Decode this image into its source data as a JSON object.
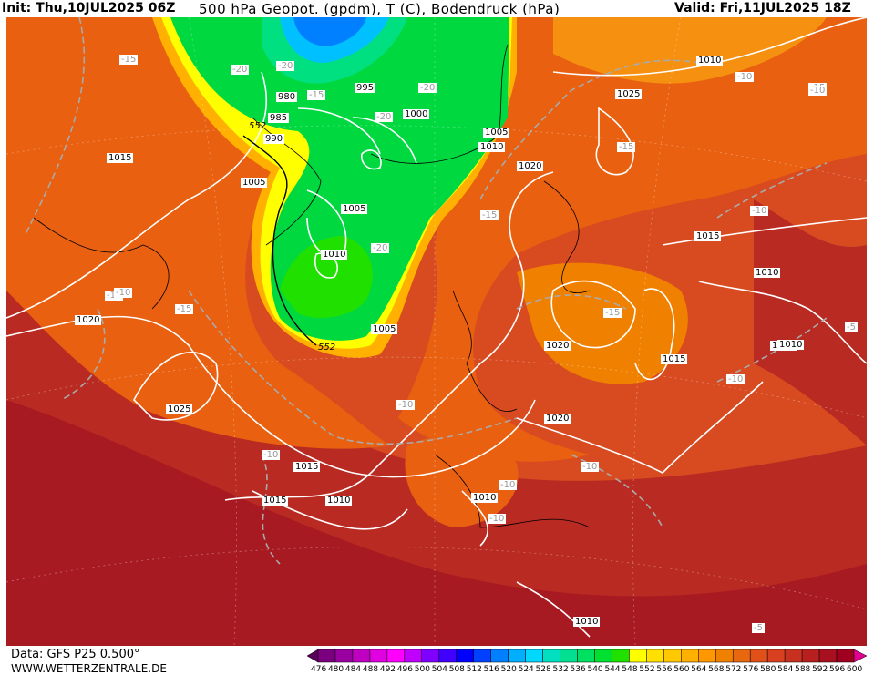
{
  "header": {
    "init": "Init: Thu,10JUL2025 06Z",
    "title": "500 hPa Geopot. (gpdm), T (C), Bodendruck (hPa)",
    "valid": "Valid: Fri,11JUL2025 18Z"
  },
  "footer": {
    "data_source": "Data: GFS P25 0.500°",
    "website": "WWW.WETTERZENTRALE.DE"
  },
  "map_labels": {
    "isobars": [
      "1010",
      "1025",
      "1015",
      "995",
      "1000",
      "980",
      "985",
      "990",
      "1005",
      "1005",
      "1010",
      "1020",
      "1005",
      "1015",
      "1010",
      "1020",
      "1015",
      "1025",
      "1005",
      "1010",
      "1015",
      "1020",
      "1015",
      "1010",
      "1010",
      "1015",
      "1010",
      "1010",
      "1020"
    ],
    "temperatures": [
      "-15",
      "-20",
      "-20",
      "-15",
      "-20",
      "-20",
      "-15",
      "-10",
      "-15",
      "-10",
      "-15",
      "-10",
      "-20",
      "-15",
      "-15",
      "-10",
      "-10",
      "-10",
      "-10",
      "-5",
      "-10",
      "-10",
      "-10",
      "-10",
      "-5"
    ],
    "geopotential": [
      "552",
      "552"
    ]
  },
  "legend": {
    "ticks": [
      "476",
      "480",
      "484",
      "488",
      "492",
      "496",
      "500",
      "504",
      "508",
      "512",
      "516",
      "520",
      "524",
      "528",
      "532",
      "536",
      "540",
      "544",
      "548",
      "552",
      "556",
      "560",
      "564",
      "568",
      "572",
      "576",
      "580",
      "584",
      "588",
      "592",
      "596",
      "600"
    ],
    "colors": [
      "#5a005a",
      "#7a0080",
      "#9a00a0",
      "#c000c0",
      "#e000e0",
      "#ff00ff",
      "#c000ff",
      "#8000ff",
      "#4000ff",
      "#0000ff",
      "#0040ff",
      "#0080ff",
      "#00b0ff",
      "#00d8ff",
      "#00e0c0",
      "#00e090",
      "#00e060",
      "#00e030",
      "#20e000",
      "#ffff00",
      "#ffe000",
      "#ffc800",
      "#ffb000",
      "#ff9800",
      "#f08000",
      "#e86810",
      "#e05018",
      "#d84020",
      "#c83020",
      "#b82020",
      "#a81020",
      "#a00020",
      "#e00090"
    ]
  }
}
